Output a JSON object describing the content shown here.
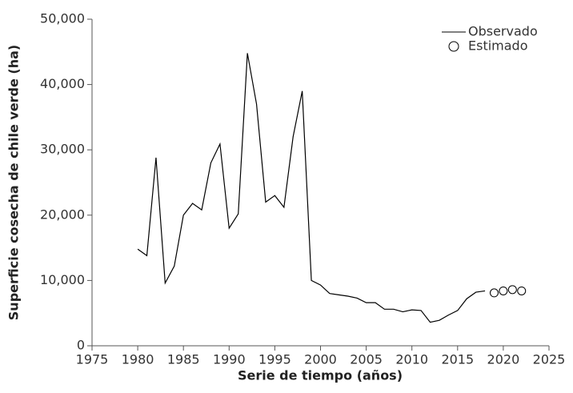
{
  "chart_data": {
    "type": "line",
    "xlabel": "Serie de tiempo (años)",
    "ylabel": "Superficie cosecha de chile verde (ha)",
    "xlim": [
      1975,
      2025
    ],
    "xticks": [
      1975,
      1980,
      1985,
      1990,
      1995,
      2000,
      2005,
      2010,
      2015,
      2020,
      2025
    ],
    "ylim": [
      0,
      50000
    ],
    "yticks": [
      0,
      {
        "value": 10000,
        "label": "10,000"
      },
      {
        "value": 20000,
        "label": "20,000"
      },
      {
        "value": 30000,
        "label": "30,000"
      },
      {
        "value": 40000,
        "label": "40,000"
      },
      {
        "value": 50000,
        "label": "50,000"
      }
    ],
    "legend": "upper right",
    "series": [
      {
        "name": "Observado",
        "color": "#000000",
        "marker": "line",
        "x": [
          1980,
          1981,
          1982,
          1983,
          1984,
          1985,
          1986,
          1987,
          1988,
          1989,
          1990,
          1991,
          1992,
          1993,
          1994,
          1995,
          1996,
          1997,
          1998,
          1999,
          2000,
          2001,
          2002,
          2003,
          2004,
          2005,
          2006,
          2007,
          2008,
          2009,
          2010,
          2011,
          2012,
          2013,
          2014,
          2015,
          2016,
          2017,
          2018
        ],
        "values": [
          14800,
          13800,
          28800,
          9600,
          12200,
          20000,
          21800,
          20800,
          28000,
          30900,
          18000,
          20200,
          44800,
          37000,
          22000,
          23000,
          21200,
          32000,
          39000,
          10000,
          9300,
          8000,
          7800,
          7600,
          7300,
          6600,
          6600,
          5600,
          5600,
          5200,
          5500,
          5400,
          3600,
          3900,
          4700,
          5400,
          7200,
          8200,
          8400
        ]
      },
      {
        "name": "Estimado",
        "color": "#000000",
        "marker": "circle",
        "x": [
          2019,
          2020,
          2021,
          2022
        ],
        "values": [
          8100,
          8400,
          8600,
          8400
        ]
      }
    ]
  }
}
